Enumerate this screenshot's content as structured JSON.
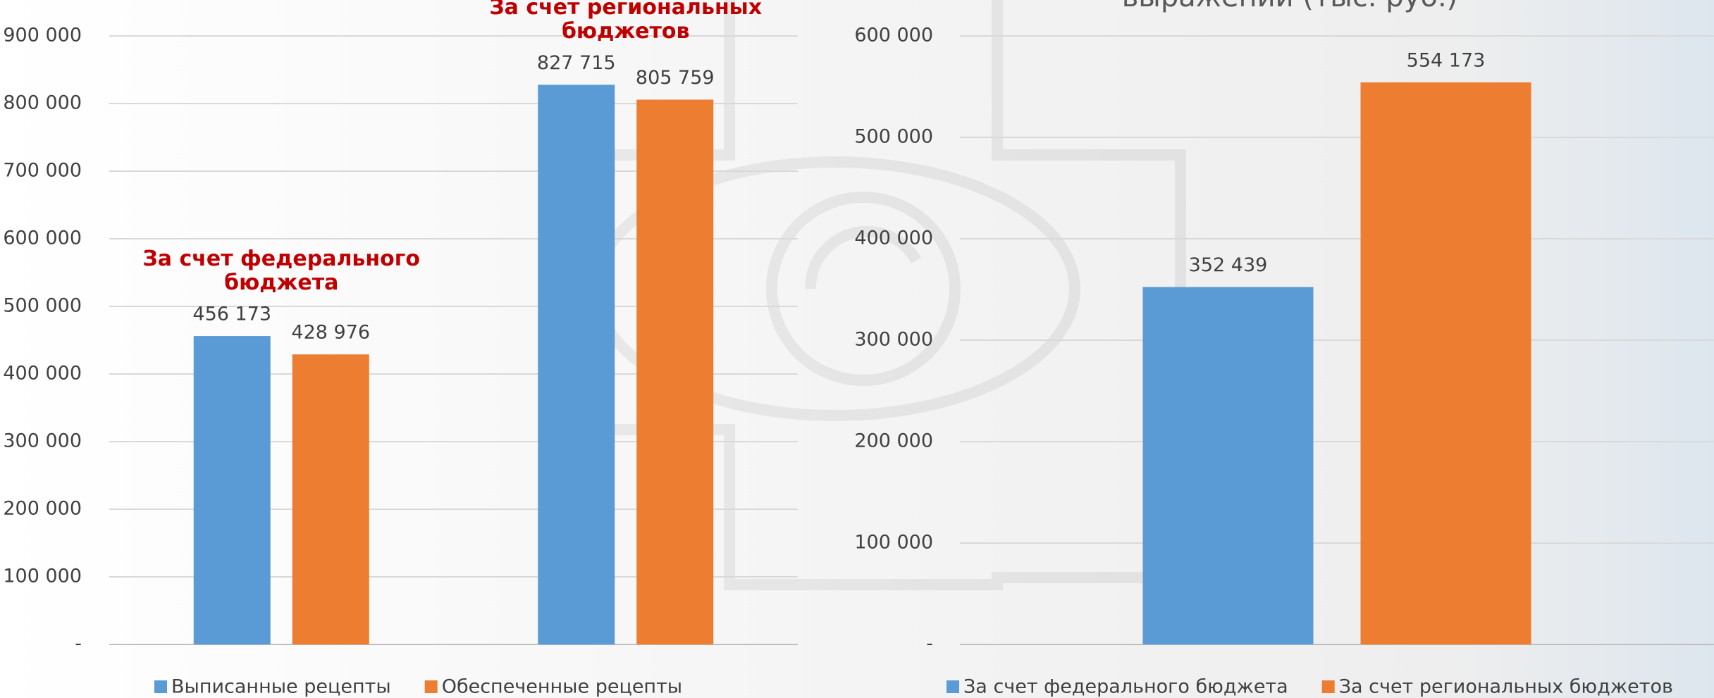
{
  "chart_data": [
    {
      "type": "bar",
      "categories": [
        "За счет федерального бюджета",
        "За счет региональных бюджетов"
      ],
      "series": [
        {
          "name": "Выписанные рецепты",
          "color": "#5b9bd5",
          "values": [
            456173,
            827715
          ],
          "value_labels": [
            "456 173",
            "827 715"
          ]
        },
        {
          "name": "Обеспеченные рецепты",
          "color": "#ed7d31",
          "values": [
            428976,
            805759
          ],
          "value_labels": [
            "428 976",
            "805 759"
          ]
        }
      ],
      "ylim": [
        0,
        900000
      ],
      "yticks": [
        {
          "value": 0,
          "label": "-"
        },
        {
          "value": 100000,
          "label": "100 000"
        },
        {
          "value": 200000,
          "label": "200 000"
        },
        {
          "value": 300000,
          "label": "300 000"
        },
        {
          "value": 400000,
          "label": "400 000"
        },
        {
          "value": 500000,
          "label": "500 000"
        },
        {
          "value": 600000,
          "label": "600 000"
        },
        {
          "value": 700000,
          "label": "700 000"
        },
        {
          "value": 800000,
          "label": "800 000"
        },
        {
          "value": 900000,
          "label": "900 000"
        }
      ],
      "grid": true
    },
    {
      "type": "bar",
      "title": "выражении (тыс. руб.)",
      "categories": [
        null
      ],
      "series": [
        {
          "name": "За счет федерального бюджета",
          "color": "#5b9bd5",
          "values": [
            352439
          ],
          "value_labels": [
            "352 439"
          ]
        },
        {
          "name": "За счет региональных бюджетов",
          "color": "#ed7d31",
          "values": [
            554173
          ],
          "value_labels": [
            "554 173"
          ]
        }
      ],
      "ylim": [
        0,
        600000
      ],
      "yticks": [
        {
          "value": 0,
          "label": "-"
        },
        {
          "value": 100000,
          "label": "100 000"
        },
        {
          "value": 200000,
          "label": "200 000"
        },
        {
          "value": 300000,
          "label": "300 000"
        },
        {
          "value": 400000,
          "label": "400 000"
        },
        {
          "value": 500000,
          "label": "500 000"
        },
        {
          "value": 600000,
          "label": "600 000"
        }
      ],
      "grid": true
    }
  ]
}
